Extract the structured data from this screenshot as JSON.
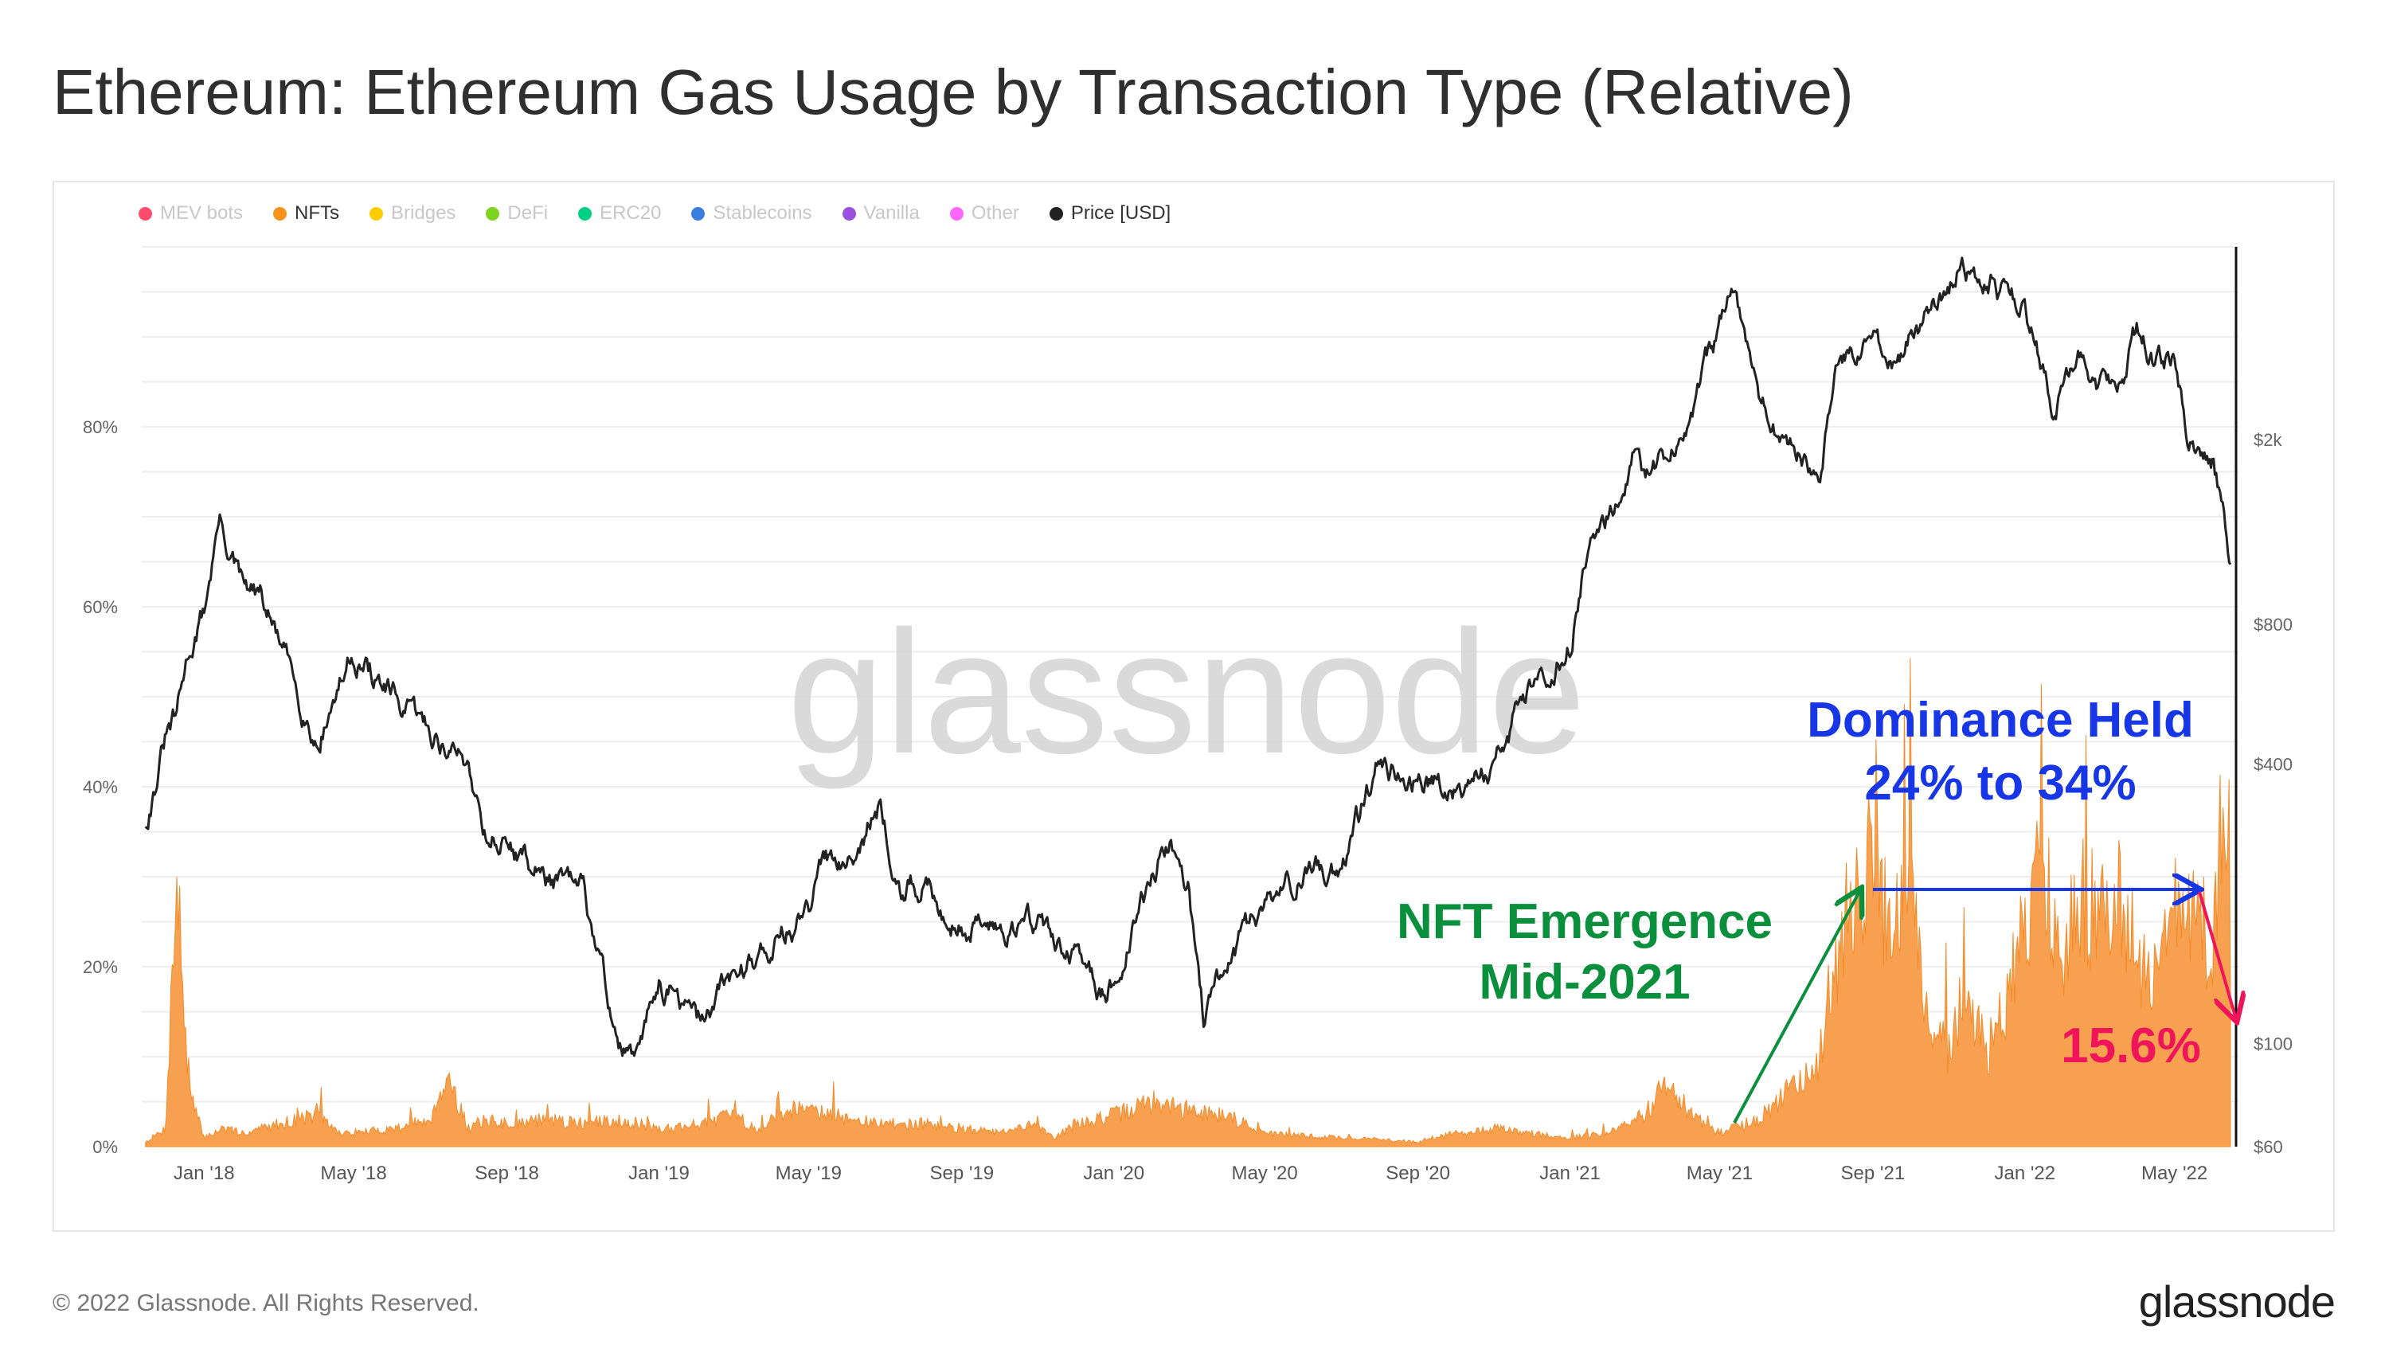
{
  "title": "Ethereum: Ethereum Gas Usage by Transaction Type (Relative)",
  "legend": [
    {
      "label": "MEV bots",
      "color": "#ff4d6d",
      "active": false
    },
    {
      "label": "NFTs",
      "color": "#f7931a",
      "active": true
    },
    {
      "label": "Bridges",
      "color": "#ffcc00",
      "active": false
    },
    {
      "label": "DeFi",
      "color": "#7ed321",
      "active": false
    },
    {
      "label": "ERC20",
      "color": "#00d084",
      "active": false
    },
    {
      "label": "Stablecoins",
      "color": "#3b7ddd",
      "active": false
    },
    {
      "label": "Vanilla",
      "color": "#9b51e0",
      "active": false
    },
    {
      "label": "Other",
      "color": "#ff66ff",
      "active": false
    },
    {
      "label": "Price [USD]",
      "color": "#222222",
      "active": true
    }
  ],
  "watermark": "glassnode",
  "footer": "© 2022 Glassnode. All Rights Reserved.",
  "brand": "glassnode",
  "annotations": {
    "nft_emergence_line1": "NFT Emergence",
    "nft_emergence_line2": "Mid-2021",
    "dominance_line1": "Dominance Held",
    "dominance_line2": "24% to 34%",
    "latest_value": "15.6%",
    "green": "#0a8f3c",
    "blue": "#1736e6",
    "red": "#f0145a"
  },
  "chart_data": {
    "type": "area",
    "x_ticks": [
      "Jan '18",
      "May '18",
      "Sep '18",
      "Jan '19",
      "May '19",
      "Sep '19",
      "Jan '20",
      "May '20",
      "Sep '20",
      "Jan '21",
      "May '21",
      "Sep '21",
      "Jan '22",
      "May '22"
    ],
    "y_left": {
      "ticks": [
        "0%",
        "20%",
        "40%",
        "60%",
        "80%"
      ],
      "range": [
        0,
        100
      ]
    },
    "y_right": {
      "ticks": [
        "$60",
        "$100",
        "$400",
        "$800",
        "$2k"
      ],
      "scale": "log"
    },
    "series": [
      {
        "name": "NFTs",
        "color": "#f7a04f",
        "axis": "left",
        "x": [
          "2017-11-15",
          "2017-12-01",
          "2017-12-10",
          "2017-12-20",
          "2018-01-01",
          "2018-01-15",
          "2018-02-01",
          "2018-03-01",
          "2018-04-01",
          "2018-04-20",
          "2018-05-01",
          "2018-06-01",
          "2018-07-01",
          "2018-07-15",
          "2018-08-01",
          "2018-08-15",
          "2018-09-01",
          "2018-10-01",
          "2018-11-01",
          "2018-12-01",
          "2019-01-01",
          "2019-02-01",
          "2019-03-01",
          "2019-03-20",
          "2019-04-01",
          "2019-05-01",
          "2019-05-10",
          "2019-06-01",
          "2019-07-01",
          "2019-08-01",
          "2019-09-01",
          "2019-10-01",
          "2019-11-01",
          "2019-11-15",
          "2019-12-01",
          "2020-01-01",
          "2020-02-01",
          "2020-03-01",
          "2020-04-01",
          "2020-05-01",
          "2020-06-01",
          "2020-07-01",
          "2020-08-01",
          "2020-09-01",
          "2020-10-01",
          "2020-11-01",
          "2020-12-01",
          "2021-01-01",
          "2021-02-01",
          "2021-03-01",
          "2021-03-20",
          "2021-04-01",
          "2021-05-01",
          "2021-06-01",
          "2021-07-01",
          "2021-07-20",
          "2021-08-01",
          "2021-08-15",
          "2021-09-01",
          "2021-09-15",
          "2021-10-01",
          "2021-10-15",
          "2021-11-01",
          "2021-11-15",
          "2021-12-01",
          "2021-12-15",
          "2022-01-01",
          "2022-01-15",
          "2022-02-01",
          "2022-02-15",
          "2022-03-01",
          "2022-03-15",
          "2022-04-01",
          "2022-04-15",
          "2022-05-01",
          "2022-05-15",
          "2022-06-01",
          "2022-06-10",
          "2022-06-15"
        ],
        "y": [
          0.5,
          2,
          30,
          6,
          1,
          2,
          1.5,
          2.5,
          3.5,
          1.5,
          1.5,
          2,
          3,
          8,
          2,
          3,
          2.5,
          3,
          2.5,
          3,
          2,
          2.5,
          3.5,
          2,
          3,
          5,
          4,
          3,
          2.5,
          2.5,
          2,
          1.5,
          2.5,
          1,
          2.5,
          3.5,
          5,
          4,
          3.5,
          1.5,
          1.2,
          1,
          0.8,
          0.5,
          1.5,
          2,
          1.5,
          1,
          1.5,
          3.5,
          7,
          4,
          1.5,
          3,
          7,
          10,
          20,
          28,
          32,
          23,
          28,
          13,
          11,
          18,
          10,
          15,
          26,
          30,
          22,
          28,
          25,
          30,
          22,
          18,
          26,
          28,
          20,
          42,
          15.6
        ]
      },
      {
        "name": "Price [USD]",
        "color": "#222222",
        "axis": "right",
        "x": [
          "2017-11-15",
          "2017-12-01",
          "2017-12-10",
          "2017-12-20",
          "2018-01-01",
          "2018-01-13",
          "2018-02-01",
          "2018-02-15",
          "2018-03-01",
          "2018-04-01",
          "2018-05-01",
          "2018-06-01",
          "2018-07-01",
          "2018-08-01",
          "2018-08-15",
          "2018-09-01",
          "2018-10-01",
          "2018-11-01",
          "2018-11-20",
          "2018-12-01",
          "2018-12-15",
          "2019-01-01",
          "2019-02-01",
          "2019-03-01",
          "2019-04-01",
          "2019-05-01",
          "2019-05-15",
          "2019-06-01",
          "2019-06-26",
          "2019-07-15",
          "2019-08-01",
          "2019-09-01",
          "2019-10-01",
          "2019-11-01",
          "2019-12-01",
          "2019-12-20",
          "2020-01-01",
          "2020-02-01",
          "2020-02-15",
          "2020-03-01",
          "2020-03-13",
          "2020-04-01",
          "2020-05-01",
          "2020-06-01",
          "2020-07-01",
          "2020-08-01",
          "2020-09-01",
          "2020-10-01",
          "2020-11-01",
          "2020-12-01",
          "2021-01-01",
          "2021-01-15",
          "2021-02-01",
          "2021-02-20",
          "2021-03-01",
          "2021-04-01",
          "2021-05-12",
          "2021-06-01",
          "2021-06-22",
          "2021-07-20",
          "2021-08-01",
          "2021-09-01",
          "2021-09-21",
          "2021-10-01",
          "2021-11-01",
          "2021-11-10",
          "2021-12-01",
          "2022-01-01",
          "2022-01-24",
          "2022-02-15",
          "2022-03-01",
          "2022-03-15",
          "2022-04-01",
          "2022-04-15",
          "2022-05-01",
          "2022-05-12",
          "2022-06-01",
          "2022-06-15"
        ],
        "y": [
          300,
          450,
          500,
          700,
          850,
          1350,
          950,
          900,
          750,
          450,
          700,
          550,
          470,
          400,
          290,
          270,
          230,
          210,
          130,
          100,
          90,
          140,
          110,
          140,
          165,
          190,
          250,
          260,
          320,
          220,
          215,
          180,
          180,
          185,
          150,
          130,
          135,
          230,
          280,
          220,
          110,
          150,
          200,
          230,
          240,
          400,
          380,
          360,
          400,
          600,
          730,
          1200,
          1350,
          1900,
          1550,
          2000,
          4100,
          2500,
          1900,
          1750,
          2700,
          3400,
          2800,
          3300,
          4300,
          4750,
          4500,
          3700,
          2400,
          3100,
          2700,
          2600,
          3400,
          3000,
          2900,
          2000,
          1800,
          1100
        ]
      }
    ]
  }
}
